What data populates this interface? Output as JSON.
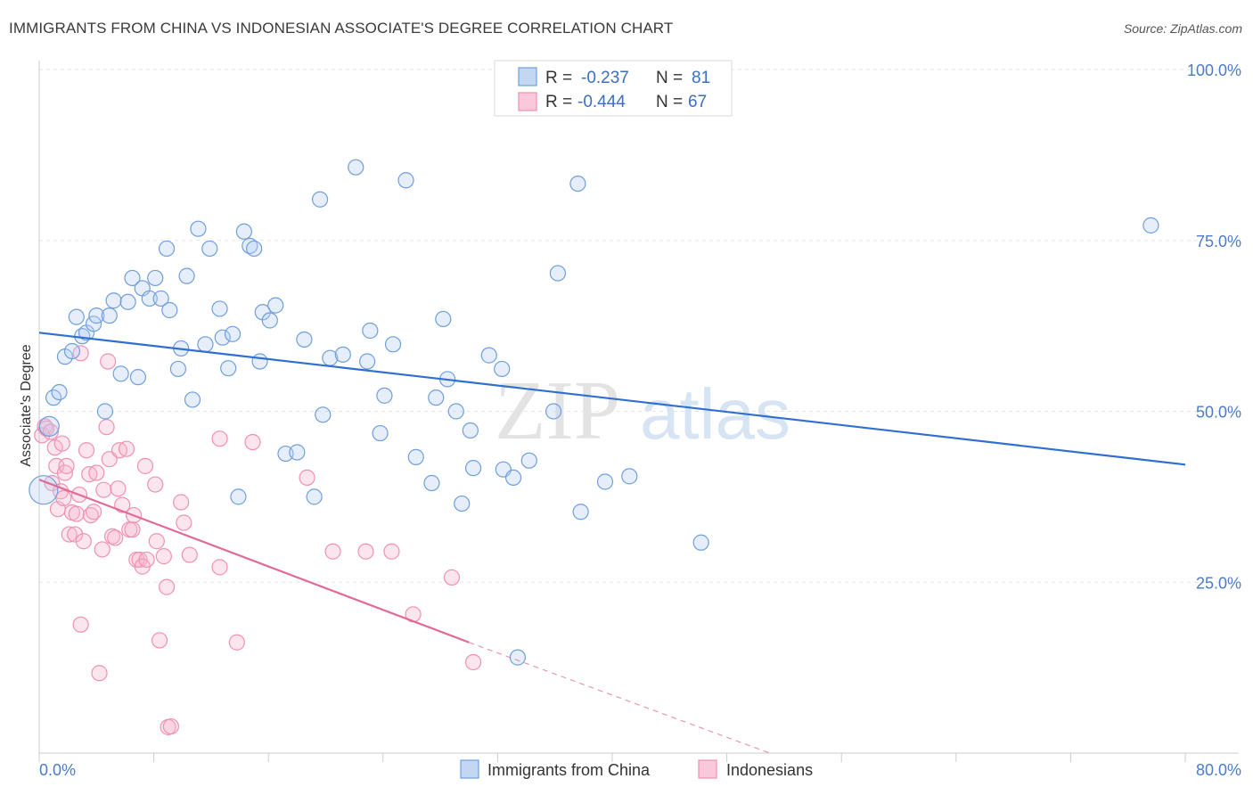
{
  "header": {
    "title": "IMMIGRANTS FROM CHINA VS INDONESIAN ASSOCIATE'S DEGREE CORRELATION CHART",
    "source": "Source: ZipAtlas.com"
  },
  "watermark": {
    "zip": "ZIP",
    "atlas": "atlas"
  },
  "colors": {
    "blue": "#6f9fdc",
    "blue_line": "#2f6fd0",
    "pink": "#f091b4",
    "pink_line": "#e06a98"
  },
  "legend": {
    "rows": [
      {
        "r_label": "R = ",
        "r_value": "-0.237",
        "n_label": "N = ",
        "n_value": "81"
      },
      {
        "r_label": "R = ",
        "r_value": "-0.444",
        "n_label": "N = ",
        "n_value": "67"
      }
    ]
  },
  "chart_data": {
    "type": "scatter",
    "title": "IMMIGRANTS FROM CHINA VS INDONESIAN ASSOCIATE'S DEGREE CORRELATION CHART",
    "xlabel": "",
    "ylabel": "Associate's Degree",
    "xlim": [
      0,
      80
    ],
    "ylim": [
      0,
      100
    ],
    "x_tick_labels": [
      "0.0%",
      "80.0%"
    ],
    "y_ticks": [
      25,
      50,
      75,
      100
    ],
    "y_tick_labels": [
      "25.0%",
      "50.0%",
      "75.0%",
      "100.0%"
    ],
    "grid": true,
    "legend_position": "top-center",
    "series": [
      {
        "name": "Immigrants from China",
        "color": "#6f9fdc",
        "trend": {
          "x": [
            0,
            80
          ],
          "y": [
            61.5,
            42.2
          ]
        },
        "points": [
          [
            0.3,
            38.5
          ],
          [
            0.7,
            47.8
          ],
          [
            1.0,
            52.0
          ],
          [
            1.4,
            52.8
          ],
          [
            1.8,
            58.0
          ],
          [
            2.3,
            58.8
          ],
          [
            2.6,
            63.8
          ],
          [
            3.0,
            61.0
          ],
          [
            3.3,
            61.5
          ],
          [
            3.8,
            62.8
          ],
          [
            4.0,
            64.0
          ],
          [
            4.9,
            64.0
          ],
          [
            4.6,
            50.0
          ],
          [
            5.2,
            66.2
          ],
          [
            5.7,
            55.5
          ],
          [
            6.2,
            66.0
          ],
          [
            6.5,
            69.5
          ],
          [
            6.9,
            55.0
          ],
          [
            7.2,
            68.0
          ],
          [
            7.7,
            66.5
          ],
          [
            8.1,
            69.5
          ],
          [
            8.5,
            66.5
          ],
          [
            8.9,
            73.8
          ],
          [
            9.1,
            64.8
          ],
          [
            9.7,
            56.2
          ],
          [
            9.9,
            59.2
          ],
          [
            10.3,
            69.8
          ],
          [
            10.7,
            51.7
          ],
          [
            11.1,
            76.7
          ],
          [
            11.6,
            59.8
          ],
          [
            11.9,
            73.8
          ],
          [
            12.6,
            65.0
          ],
          [
            12.8,
            60.8
          ],
          [
            13.2,
            56.3
          ],
          [
            13.5,
            61.3
          ],
          [
            13.9,
            37.5
          ],
          [
            14.3,
            76.3
          ],
          [
            14.7,
            74.2
          ],
          [
            15.0,
            73.8
          ],
          [
            15.4,
            57.3
          ],
          [
            15.6,
            64.5
          ],
          [
            16.1,
            63.3
          ],
          [
            16.5,
            65.5
          ],
          [
            17.2,
            43.8
          ],
          [
            18.0,
            44.0
          ],
          [
            18.5,
            60.5
          ],
          [
            19.2,
            37.5
          ],
          [
            19.6,
            81.0
          ],
          [
            19.8,
            49.5
          ],
          [
            20.3,
            57.8
          ],
          [
            21.2,
            58.3
          ],
          [
            22.1,
            85.7
          ],
          [
            22.9,
            57.3
          ],
          [
            23.1,
            61.8
          ],
          [
            23.8,
            46.8
          ],
          [
            24.1,
            52.3
          ],
          [
            24.7,
            59.8
          ],
          [
            25.6,
            83.8
          ],
          [
            26.3,
            43.3
          ],
          [
            27.4,
            39.5
          ],
          [
            27.7,
            52.0
          ],
          [
            28.2,
            63.5
          ],
          [
            28.5,
            54.7
          ],
          [
            29.1,
            50.0
          ],
          [
            29.5,
            36.5
          ],
          [
            30.1,
            47.2
          ],
          [
            30.3,
            41.7
          ],
          [
            31.4,
            58.2
          ],
          [
            32.3,
            56.2
          ],
          [
            32.4,
            41.5
          ],
          [
            33.1,
            40.3
          ],
          [
            33.4,
            14.0
          ],
          [
            34.2,
            42.8
          ],
          [
            35.9,
            50.0
          ],
          [
            36.2,
            70.2
          ],
          [
            37.6,
            83.3
          ],
          [
            37.8,
            35.3
          ],
          [
            39.5,
            39.7
          ],
          [
            41.2,
            40.5
          ],
          [
            46.2,
            30.8
          ],
          [
            77.6,
            77.2
          ]
        ]
      },
      {
        "name": "Indonesians",
        "color": "#f091b4",
        "trend": {
          "x": [
            0,
            30
          ],
          "y": [
            40,
            16.2
          ]
        },
        "trend_dashed": {
          "x": [
            30,
            51
          ],
          "y": [
            16.2,
            0
          ]
        },
        "points": [
          [
            0.2,
            46.5
          ],
          [
            0.4,
            47.8
          ],
          [
            0.5,
            47.5
          ],
          [
            0.8,
            47.0
          ],
          [
            0.9,
            39.5
          ],
          [
            1.1,
            44.7
          ],
          [
            1.2,
            42.0
          ],
          [
            1.3,
            35.7
          ],
          [
            1.5,
            38.3
          ],
          [
            1.6,
            45.3
          ],
          [
            1.8,
            41.0
          ],
          [
            1.9,
            42.0
          ],
          [
            2.1,
            32.0
          ],
          [
            2.3,
            35.2
          ],
          [
            2.5,
            32.0
          ],
          [
            2.6,
            35.0
          ],
          [
            2.8,
            37.8
          ],
          [
            2.9,
            18.8
          ],
          [
            3.1,
            31.0
          ],
          [
            3.3,
            44.3
          ],
          [
            3.5,
            40.8
          ],
          [
            3.6,
            34.8
          ],
          [
            3.8,
            35.3
          ],
          [
            4.0,
            41.0
          ],
          [
            4.2,
            11.7
          ],
          [
            4.4,
            29.8
          ],
          [
            4.5,
            38.5
          ],
          [
            4.7,
            47.7
          ],
          [
            4.8,
            57.3
          ],
          [
            4.9,
            43.0
          ],
          [
            5.1,
            31.7
          ],
          [
            5.3,
            31.5
          ],
          [
            5.5,
            38.7
          ],
          [
            5.6,
            44.3
          ],
          [
            5.8,
            36.3
          ],
          [
            6.1,
            44.5
          ],
          [
            6.3,
            32.7
          ],
          [
            6.5,
            32.7
          ],
          [
            6.6,
            34.8
          ],
          [
            6.8,
            28.3
          ],
          [
            7.0,
            28.3
          ],
          [
            7.2,
            27.3
          ],
          [
            7.4,
            42.0
          ],
          [
            7.5,
            28.3
          ],
          [
            8.1,
            39.3
          ],
          [
            8.2,
            31.0
          ],
          [
            8.4,
            16.5
          ],
          [
            8.7,
            28.8
          ],
          [
            8.9,
            24.3
          ],
          [
            9.0,
            3.8
          ],
          [
            9.2,
            3.9
          ],
          [
            9.9,
            36.7
          ],
          [
            10.1,
            33.7
          ],
          [
            10.5,
            29.0
          ],
          [
            12.6,
            46.0
          ],
          [
            12.6,
            27.2
          ],
          [
            13.8,
            16.2
          ],
          [
            14.9,
            45.5
          ],
          [
            18.7,
            40.3
          ],
          [
            20.5,
            29.5
          ],
          [
            22.8,
            29.5
          ],
          [
            24.6,
            29.5
          ],
          [
            26.1,
            20.3
          ],
          [
            28.8,
            25.7
          ],
          [
            30.3,
            13.3
          ],
          [
            2.9,
            58.5
          ],
          [
            1.7,
            37.3
          ]
        ]
      }
    ]
  },
  "bottom_legend": {
    "items": [
      "Immigrants from China",
      "Indonesians"
    ]
  }
}
